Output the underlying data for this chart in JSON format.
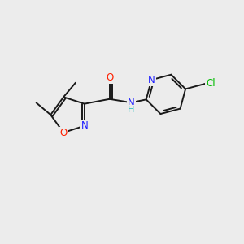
{
  "background_color": "#ececec",
  "bond_color": "#1a1a1a",
  "atom_colors": {
    "N": "#2020ff",
    "O": "#ff2000",
    "Cl": "#00bb00",
    "NH_N": "#2020ff",
    "NH_H": "#2bbfbf"
  },
  "font_size": 8.5,
  "bond_width": 1.4,
  "figsize": [
    3.0,
    3.0
  ],
  "dpi": 100
}
